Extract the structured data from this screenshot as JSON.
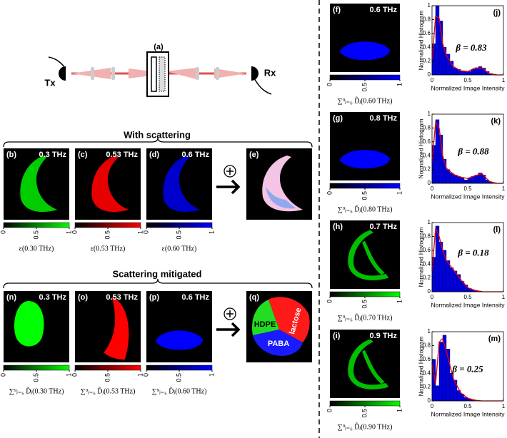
{
  "setup": {
    "label": "(a)",
    "tx": "Tx",
    "rx": "Rx"
  },
  "with_scattering": {
    "title": "With scattering",
    "panels": [
      {
        "label": "(b)",
        "frequency": "0.3 THz",
        "color": "#00ff00",
        "colorbar_ticks": [
          0,
          0.5,
          1
        ],
        "caption": "ε(0.30 THz)"
      },
      {
        "label": "(c)",
        "frequency": "0.53 THz",
        "color": "#ff0000",
        "colorbar_ticks": [
          0,
          0.5,
          1
        ],
        "caption": "ε(0.53 THz)"
      },
      {
        "label": "(d)",
        "frequency": "0.6 THz",
        "color": "#0000ff",
        "colorbar_ticks": [
          0,
          0.5,
          1
        ],
        "caption": "ε(0.60 THz)"
      }
    ],
    "combined_label": "(e)"
  },
  "scattering_mitigated": {
    "title": "Scattering mitigated",
    "panels": [
      {
        "label": "(n)",
        "frequency": "0.3 THz",
        "color": "#00ff00",
        "colorbar_ticks": [
          0,
          0.5,
          1
        ],
        "caption": "∑⁹ⱼ₌₆ D̃ⱼ(0.30 THz)"
      },
      {
        "label": "(o)",
        "frequency": "0.53 THz",
        "color": "#ff0000",
        "colorbar_ticks": [
          0,
          0.5,
          1
        ],
        "caption": "∑⁹ⱼ₌₆ D̃ⱼ(0.53 THz)"
      },
      {
        "label": "(p)",
        "frequency": "0.6 THz",
        "color": "#0000ff",
        "colorbar_ticks": [
          0,
          0.5,
          1
        ],
        "caption": "∑⁹ⱼ₌₆ D̃ⱼ(0.60 THz)"
      }
    ],
    "combined": {
      "label": "(q)",
      "regions": [
        "HDPE",
        "lactose",
        "PABA"
      ]
    }
  },
  "frequency_maps": [
    {
      "label": "(f)",
      "frequency": "0.6 THz",
      "color": "#0000ff",
      "colorbar_ticks": [
        0,
        0.5,
        1
      ],
      "caption": "∑⁹ⱼ₌₆ D̃ⱼ(0.60 THz)"
    },
    {
      "label": "(g)",
      "frequency": "0.8 THz",
      "color": "#0000ff",
      "colorbar_ticks": [
        0,
        0.5,
        1
      ],
      "caption": "∑⁹ⱼ₌₆ D̃ⱼ(0.80 THz)"
    },
    {
      "label": "(h)",
      "frequency": "0.7 THz",
      "color": "#00ff00",
      "colorbar_ticks": [
        0,
        0.5,
        1
      ],
      "caption": "∑⁹ⱼ₌₆ D̃ⱼ(0.70 THz)"
    },
    {
      "label": "(i)",
      "frequency": "0.9 THz",
      "color": "#00ff00",
      "colorbar_ticks": [
        0,
        0.5,
        1
      ],
      "caption": "∑⁹ⱼ₌₆ D̃ⱼ(0.90 THz)"
    }
  ],
  "chart_data": [
    {
      "type": "histogram",
      "label": "(j)",
      "annotation": "β = 0.83",
      "xlabel": "Normalized Image Intensity",
      "ylabel": "Normalized Histogram",
      "color": "#0000dd",
      "bins": [
        0,
        0.05,
        0.1,
        0.15,
        0.2,
        0.25,
        0.3,
        0.35,
        0.4,
        0.45,
        0.5,
        0.55,
        0.6,
        0.65,
        0.7,
        0.75,
        0.8,
        0.85,
        0.9,
        0.95,
        1
      ],
      "values": [
        0.45,
        1,
        0.78,
        0.4,
        0.3,
        0.2,
        0.1,
        0.08,
        0.05,
        0.05,
        0.05,
        0.08,
        0.1,
        0.12,
        0.1,
        0.05,
        0.02,
        0.01,
        0,
        0
      ],
      "curve": {
        "color": "#ee0000",
        "x": [
          0,
          0.05,
          0.1,
          0.15,
          0.2,
          0.3,
          0.4,
          0.5,
          0.6,
          0.7,
          0.8,
          0.9,
          1
        ],
        "values": [
          0.2,
          0.85,
          0.82,
          0.45,
          0.28,
          0.12,
          0.06,
          0.05,
          0.1,
          0.1,
          0.02,
          0,
          0
        ]
      },
      "xlim": [
        0,
        1
      ],
      "ylim": [
        0,
        1
      ],
      "xticks": [
        0,
        0.5,
        1
      ],
      "yticks": [
        0,
        0.2,
        0.4,
        0.6,
        0.8,
        1
      ]
    },
    {
      "type": "histogram",
      "label": "(k)",
      "annotation": "β = 0.88",
      "xlabel": "Normalized Image Intensity",
      "ylabel": "Normalized Histogram",
      "color": "#0000dd",
      "bins": [
        0,
        0.05,
        0.1,
        0.15,
        0.2,
        0.25,
        0.3,
        0.35,
        0.4,
        0.45,
        0.5,
        0.55,
        0.6,
        0.65,
        0.7,
        0.75,
        0.8,
        0.85,
        0.9,
        0.95,
        1
      ],
      "values": [
        0.55,
        0.92,
        0.7,
        0.35,
        0.2,
        0.15,
        0.12,
        0.1,
        0.08,
        0.05,
        0.08,
        0.1,
        0.12,
        0.15,
        0.12,
        0.05,
        0.02,
        0.01,
        0,
        0
      ],
      "curve": {
        "color": "#ee0000",
        "x": [
          0,
          0.05,
          0.1,
          0.15,
          0.2,
          0.3,
          0.4,
          0.5,
          0.6,
          0.7,
          0.8,
          0.9,
          1
        ],
        "values": [
          0.3,
          0.88,
          0.8,
          0.4,
          0.22,
          0.13,
          0.09,
          0.07,
          0.11,
          0.14,
          0.03,
          0,
          0
        ]
      },
      "xlim": [
        0,
        1
      ],
      "ylim": [
        0,
        1
      ],
      "xticks": [
        0,
        0.5,
        1
      ],
      "yticks": [
        0,
        0.2,
        0.4,
        0.6,
        0.8,
        1
      ]
    },
    {
      "type": "histogram",
      "label": "(l)",
      "annotation": "β = 0.18",
      "xlabel": "Normalized Image Intensity",
      "ylabel": "Normalized Histogram",
      "color": "#0000dd",
      "bins": [
        0,
        0.05,
        0.1,
        0.15,
        0.2,
        0.25,
        0.3,
        0.35,
        0.4,
        0.45,
        0.5,
        0.55,
        0.6,
        0.65,
        0.7,
        0.75,
        0.8,
        0.85,
        0.9,
        0.95,
        1
      ],
      "values": [
        0.5,
        0.95,
        0.72,
        0.6,
        0.45,
        0.35,
        0.3,
        0.25,
        0.15,
        0.1,
        0.05,
        0.03,
        0.02,
        0.01,
        0,
        0,
        0,
        0,
        0,
        0
      ],
      "curve": {
        "color": "#ee0000",
        "x": [
          0,
          0.05,
          0.1,
          0.15,
          0.2,
          0.3,
          0.4,
          0.5,
          0.6,
          0.7,
          0.8,
          0.9,
          1
        ],
        "values": [
          0.3,
          0.92,
          0.8,
          0.6,
          0.45,
          0.32,
          0.18,
          0.06,
          0.02,
          0,
          0,
          0,
          0
        ]
      },
      "xlim": [
        0,
        1
      ],
      "ylim": [
        0,
        1
      ],
      "xticks": [
        0,
        0.5,
        1
      ],
      "yticks": [
        0,
        0.2,
        0.4,
        0.6,
        0.8,
        1
      ]
    },
    {
      "type": "histogram",
      "label": "(m)",
      "annotation": "β = 0.25",
      "xlabel": "Normalized Image Intensity",
      "ylabel": "Normalized Histogram",
      "color": "#0000dd",
      "bins": [
        0,
        0.05,
        0.1,
        0.15,
        0.2,
        0.25,
        0.3,
        0.35,
        0.4,
        0.45,
        0.5,
        0.55,
        0.6,
        0.65,
        0.7,
        0.75,
        0.8,
        0.85,
        0.9,
        0.95,
        1
      ],
      "values": [
        0.6,
        0.22,
        0.85,
        0.95,
        0.75,
        0.4,
        0.3,
        0.15,
        0.1,
        0.05,
        0.03,
        0.02,
        0.01,
        0,
        0,
        0,
        0,
        0,
        0,
        0
      ],
      "curve": {
        "color": "#ee0000",
        "x": [
          0,
          0.05,
          0.1,
          0.15,
          0.2,
          0.3,
          0.4,
          0.5,
          0.6,
          0.7,
          0.8,
          0.9,
          1
        ],
        "values": [
          0.55,
          0.25,
          0.85,
          0.9,
          0.72,
          0.32,
          0.12,
          0.04,
          0.01,
          0,
          0,
          0,
          0
        ]
      },
      "xlim": [
        0,
        1
      ],
      "ylim": [
        0,
        1
      ],
      "xticks": [
        0,
        0.5,
        1
      ],
      "yticks": [
        0,
        0.2,
        0.4,
        0.6,
        0.8,
        1
      ]
    }
  ]
}
